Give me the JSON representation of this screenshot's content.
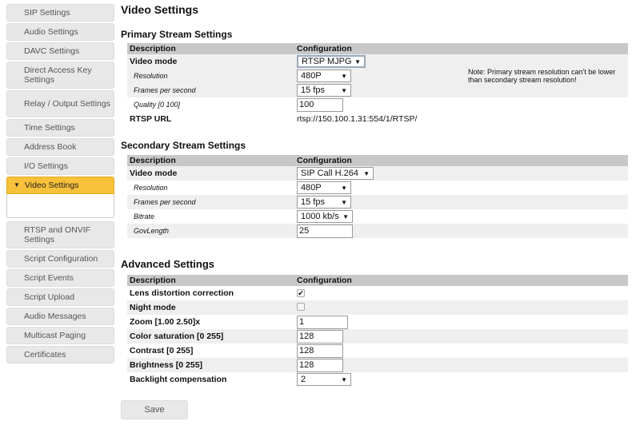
{
  "sidebar": {
    "items": [
      "SIP Settings",
      "Audio Settings",
      "DAVC Settings",
      "Direct Access Key Settings",
      "Relay / Output Settings",
      "Time Settings",
      "Address Book",
      "I/O Settings",
      "Video Settings",
      "RTSP and ONVIF Settings",
      "Script Configuration",
      "Script Events",
      "Script Upload",
      "Audio Messages",
      "Multicast Paging",
      "Certificates"
    ],
    "active": "Video Settings"
  },
  "page_title": "Video Settings",
  "headers": {
    "description": "Description",
    "configuration": "Configuration"
  },
  "primary": {
    "title": "Primary Stream Settings",
    "video_mode_label": "Video mode",
    "video_mode": "RTSP MJPG",
    "resolution_label": "Resolution",
    "resolution": "480P",
    "fps_label": "Frames per second",
    "fps": "15 fps",
    "quality_label": "Quality [0 100]",
    "quality": "100",
    "rtsp_label": "RTSP URL",
    "rtsp_url": "rtsp://150.100.1.31:554/1/RTSP/",
    "note": "Note: Primary stream resolution can't be lower than secondary stream resolution!"
  },
  "secondary": {
    "title": "Secondary Stream Settings",
    "video_mode_label": "Video mode",
    "video_mode": "SIP Call H.264",
    "resolution_label": "Resolution",
    "resolution": "480P",
    "fps_label": "Frames per second",
    "fps": "15 fps",
    "bitrate_label": "Bitrate",
    "bitrate": "1000 kb/s",
    "govlength_label": "GovLength",
    "govlength": "25"
  },
  "advanced": {
    "title": "Advanced Settings",
    "lens_label": "Lens distortion correction",
    "lens": true,
    "night_label": "Night mode",
    "night": false,
    "zoom_label": "Zoom [1.00 2.50]x",
    "zoom": "1",
    "saturation_label": "Color saturation [0 255]",
    "saturation": "128",
    "contrast_label": "Contrast [0 255]",
    "contrast": "128",
    "brightness_label": "Brightness [0 255]",
    "brightness": "128",
    "backlight_label": "Backlight compensation",
    "backlight": "2"
  },
  "save_label": "Save",
  "colors": {
    "active_nav": "#f8c13a",
    "header_bg": "#c8c8c8"
  }
}
